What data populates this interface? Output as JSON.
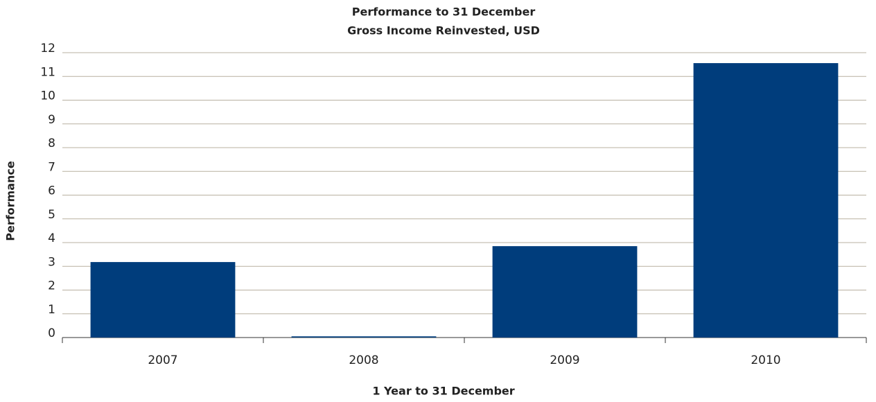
{
  "chart_data": {
    "type": "bar",
    "title": "Performance to 31 December",
    "subtitle": "Gross Income Reinvested, USD",
    "x_label": "1 Year to 31 December",
    "y_label": "Performance",
    "categories": [
      "2007",
      "2008",
      "2009",
      "2010"
    ],
    "values": [
      3.18,
      0.05,
      3.85,
      11.56
    ],
    "color": "#003d7c",
    "ylim": [
      0,
      12
    ],
    "yticks": [
      0,
      1,
      2,
      3,
      4,
      5,
      6,
      7,
      8,
      9,
      10,
      11,
      12
    ],
    "grid": true
  }
}
